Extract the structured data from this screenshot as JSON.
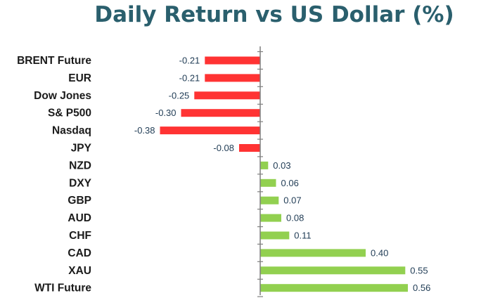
{
  "chart_data": {
    "type": "bar",
    "orientation": "horizontal",
    "title": "Daily Return vs US Dollar (%)",
    "categories": [
      "BRENT Future",
      "EUR",
      "Dow Jones",
      "S& P500",
      "Nasdaq",
      "JPY",
      "NZD",
      "DXY",
      "GBP",
      "AUD",
      "CHF",
      "CAD",
      "XAU",
      "WTI Future"
    ],
    "values": [
      -0.21,
      -0.21,
      -0.25,
      -0.3,
      -0.38,
      -0.08,
      0.03,
      0.06,
      0.07,
      0.08,
      0.11,
      0.4,
      0.55,
      0.56
    ],
    "value_labels": [
      "-0.21",
      "-0.21",
      "-0.25",
      "-0.30",
      "-0.38",
      "-0.08",
      "0.03",
      "0.06",
      "0.07",
      "0.08",
      "0.11",
      "0.40",
      "0.55",
      "0.56"
    ],
    "colors": {
      "negative": "#ff3333",
      "positive": "#92d050",
      "axis": "#7f7f7f",
      "title": "#2a5f6d"
    },
    "xlim": [
      -0.38,
      0.56
    ],
    "grid": false,
    "legend": "none"
  }
}
